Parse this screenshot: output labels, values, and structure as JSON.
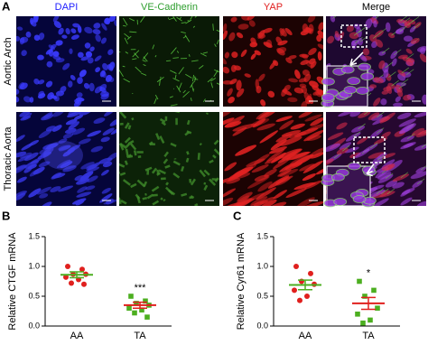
{
  "figure": {
    "panel_labels": [
      "A",
      "B",
      "C"
    ],
    "columns": [
      "DAPI",
      "VE-Cadherin",
      "YAP",
      "Merge"
    ],
    "column_colors": [
      "#2020ff",
      "#2e9e2e",
      "#e02020",
      "#000000"
    ],
    "rows": [
      "Aortic Arch",
      "Thoracic Aorta"
    ]
  },
  "chart_data": [
    {
      "type": "dot",
      "ylabel": "Relative CTGF mRNA",
      "categories": [
        "AA",
        "TA"
      ],
      "values": [
        [
          1.0,
          0.95,
          0.87,
          0.87,
          0.82,
          0.78,
          0.72,
          0.7
        ],
        [
          0.5,
          0.42,
          0.38,
          0.35,
          0.3,
          0.27,
          0.22,
          0.15
        ]
      ],
      "means": [
        0.86,
        0.35
      ],
      "sems": [
        0.05,
        0.05
      ],
      "colors": [
        "#e0201e",
        "#4caf20"
      ],
      "significance": "***",
      "ylim": [
        0,
        1.5
      ],
      "yticks": [
        {
          "value": 0,
          "label": "0.0"
        },
        {
          "value": 0.5,
          "label": "0.5"
        },
        {
          "value": 1,
          "label": "1.0"
        },
        {
          "value": 1.5,
          "label": "1.5"
        }
      ]
    },
    {
      "type": "dot",
      "ylabel": "Relative Cyr61 mRNA",
      "categories": [
        "AA",
        "TA"
      ],
      "values": [
        [
          1.0,
          0.88,
          0.75,
          0.7,
          0.6,
          0.5,
          0.43
        ],
        [
          0.75,
          0.6,
          0.5,
          0.3,
          0.2,
          0.1,
          0.05
        ]
      ],
      "means": [
        0.69,
        0.38
      ],
      "sems": [
        0.08,
        0.1
      ],
      "colors": [
        "#e0201e",
        "#4caf20"
      ],
      "significance": "*",
      "ylim": [
        0,
        1.5
      ],
      "yticks": [
        {
          "value": 0,
          "label": "0.0"
        },
        {
          "value": 0.5,
          "label": "0.5"
        },
        {
          "value": 1,
          "label": "1.0"
        },
        {
          "value": 1.5,
          "label": "1.5"
        }
      ]
    }
  ]
}
